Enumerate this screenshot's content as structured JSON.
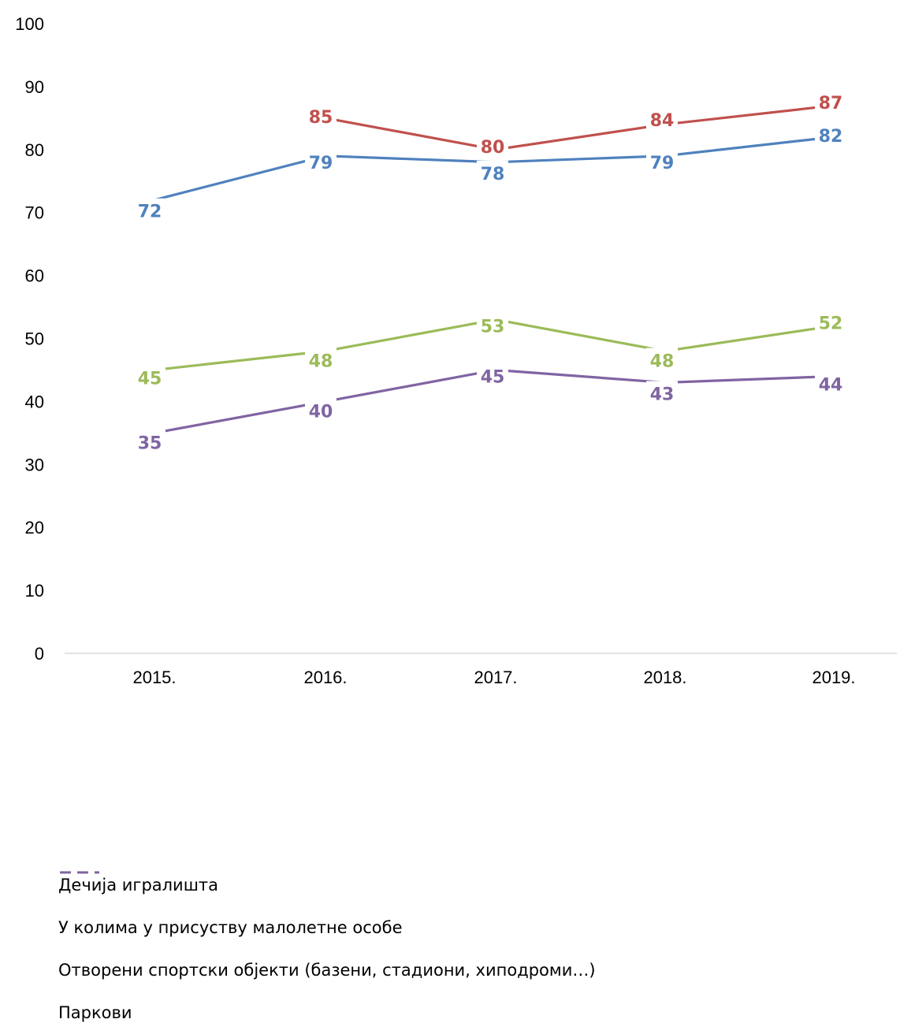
{
  "chart_data": {
    "type": "line",
    "categories": [
      "2015.",
      "2016.",
      "2017.",
      "2018.",
      "2019."
    ],
    "series": [
      {
        "name": "Дечија игралишта",
        "color": "#4F81BD",
        "values": [
          72,
          79,
          78,
          79,
          82
        ]
      },
      {
        "name": "У колима у присуству малолетне особе",
        "color": "#C0504D",
        "values": [
          null,
          85,
          80,
          84,
          87
        ]
      },
      {
        "name": "Отворени спортски објекти (базени, стадиони, хиподроми…)",
        "color": "#9BBB59",
        "values": [
          45,
          48,
          53,
          48,
          52
        ]
      },
      {
        "name": "Паркови",
        "color": "#8064A2",
        "values": [
          35,
          40,
          45,
          43,
          44
        ]
      }
    ],
    "y_ticks": [
      "0",
      "10",
      "20",
      "30",
      "40",
      "50",
      "60",
      "70",
      "80",
      "90",
      "100"
    ],
    "ylim": [
      0,
      100
    ],
    "grid": false,
    "legend_position": "bottom-left"
  }
}
